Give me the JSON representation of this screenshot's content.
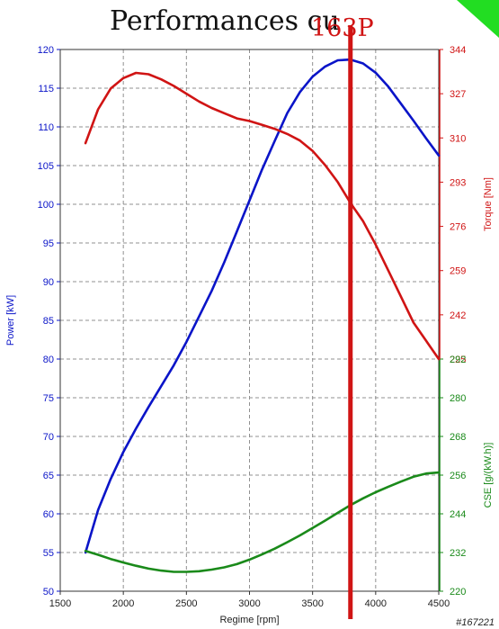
{
  "title": "Performances cu",
  "overlay_label": "163P",
  "watermark": "#167221",
  "colors": {
    "power": "#0a14c8",
    "torque": "#d01414",
    "cse": "#1a8a1a",
    "marker": "#d01414",
    "grid": "#909090",
    "corner": "#22dd22"
  },
  "chart_data": {
    "type": "line",
    "xlabel": "Regime [rpm]",
    "xlim": [
      1500,
      4500
    ],
    "x_ticks": [
      "1500",
      "2000",
      "2500",
      "3000",
      "3500",
      "4000",
      "4500"
    ],
    "grid": true,
    "axes": {
      "power": {
        "label": "Power [kW]",
        "ylim": [
          50,
          120
        ],
        "ticks": [
          "50",
          "55",
          "60",
          "65",
          "70",
          "75",
          "80",
          "85",
          "90",
          "95",
          "100",
          "105",
          "110",
          "115",
          "120"
        ]
      },
      "torque": {
        "label": "Torque [Nm]",
        "ylim": [
          225,
          344
        ],
        "ticks": [
          "225",
          "242",
          "259",
          "276",
          "293",
          "310",
          "327",
          "344"
        ]
      },
      "cse": {
        "label": "CSE [g/(kW.h)]",
        "ylim": [
          220,
          292
        ],
        "ticks": [
          "220",
          "232",
          "244",
          "256",
          "268",
          "280",
          "292"
        ]
      }
    },
    "series": [
      {
        "key": "power",
        "axis": "power",
        "x": [
          1700,
          1800,
          1900,
          2000,
          2100,
          2200,
          2300,
          2400,
          2500,
          2600,
          2700,
          2800,
          2900,
          3000,
          3100,
          3200,
          3300,
          3400,
          3500,
          3600,
          3700,
          3800,
          3900,
          4000,
          4100,
          4200,
          4300,
          4400,
          4500
        ],
        "y": [
          55,
          60.5,
          64.5,
          68,
          71,
          73.8,
          76.5,
          79.2,
          82.2,
          85.5,
          88.8,
          92.5,
          96.5,
          100.5,
          104.5,
          108.2,
          111.8,
          114.5,
          116.5,
          117.8,
          118.6,
          118.7,
          118.2,
          117,
          115.2,
          113,
          110.8,
          108.5,
          106.3
        ]
      },
      {
        "key": "torque",
        "axis": "torque",
        "x": [
          1700,
          1800,
          1900,
          2000,
          2100,
          2200,
          2300,
          2400,
          2500,
          2600,
          2700,
          2800,
          2900,
          3000,
          3100,
          3200,
          3300,
          3400,
          3500,
          3600,
          3700,
          3800,
          3900,
          4000,
          4100,
          4200,
          4300,
          4400,
          4500
        ],
        "y": [
          308,
          321,
          329,
          333,
          335,
          334.5,
          332.5,
          330,
          327,
          324,
          321.5,
          319.5,
          317.5,
          316.5,
          315,
          313.5,
          311.5,
          309,
          305,
          299.5,
          293,
          285,
          278,
          269,
          259,
          249,
          239,
          232,
          225
        ]
      },
      {
        "key": "cse",
        "axis": "cse",
        "x": [
          1700,
          1800,
          1900,
          2000,
          2100,
          2200,
          2300,
          2400,
          2500,
          2600,
          2700,
          2800,
          2900,
          3000,
          3100,
          3200,
          3300,
          3400,
          3500,
          3600,
          3700,
          3800,
          3900,
          4000,
          4100,
          4200,
          4300,
          4400,
          4500
        ],
        "y": [
          232.5,
          231.3,
          230,
          228.9,
          227.9,
          227,
          226.4,
          226,
          226,
          226.2,
          226.7,
          227.4,
          228.4,
          229.8,
          231.4,
          233.2,
          235.2,
          237.3,
          239.6,
          241.9,
          244.3,
          246.7,
          248.8,
          250.7,
          252.4,
          254,
          255.5,
          256.5,
          256.8
        ]
      }
    ],
    "marker_x": 3800
  }
}
